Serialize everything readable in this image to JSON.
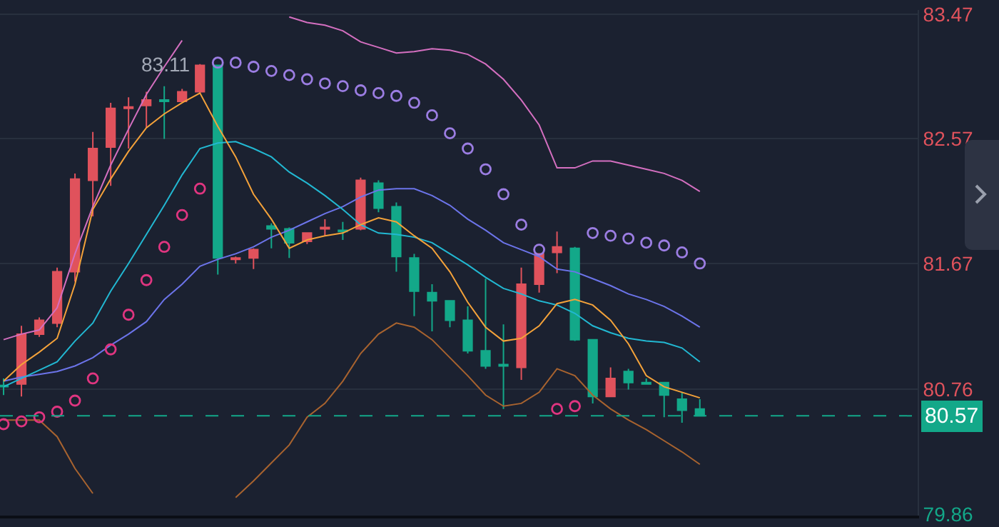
{
  "chart_data": {
    "type": "candlestick",
    "categories": [
      null,
      null,
      null,
      null,
      null,
      null,
      null,
      null,
      null,
      null,
      null,
      null,
      null,
      null,
      null,
      null,
      null,
      null,
      null,
      null,
      null,
      null,
      null,
      null,
      null,
      null,
      null,
      null,
      null,
      null,
      null,
      null,
      null,
      null,
      null,
      null,
      null,
      null,
      null,
      null
    ],
    "ylim": [
      79.85,
      83.5
    ],
    "yticks": [
      83.47,
      82.57,
      81.67,
      80.76,
      79.86
    ],
    "grid": "y",
    "tick_labels": "y",
    "series": [
      {
        "type": "line",
        "color": "#d46fc0",
        "values": [
          81.12,
          81.16,
          81.19,
          81.35,
          81.74,
          82.08,
          82.38,
          82.64,
          82.89,
          83.09,
          83.28,
          null,
          null,
          null,
          null,
          null,
          83.45,
          83.41,
          83.39,
          83.35,
          83.27,
          83.23,
          83.19,
          83.2,
          83.22,
          83.21,
          83.18,
          83.11,
          83.0,
          82.85,
          82.67,
          82.36,
          82.36,
          82.41,
          82.41,
          82.38,
          82.35,
          82.32,
          82.27,
          82.19
        ]
      },
      {
        "type": "line",
        "color": "#a8632f",
        "values": [
          80.54,
          80.54,
          80.54,
          80.42,
          80.19,
          80.01,
          null,
          null,
          null,
          null,
          null,
          null,
          null,
          79.98,
          80.1,
          80.23,
          80.36,
          80.56,
          80.66,
          80.82,
          81.02,
          81.16,
          81.24,
          81.21,
          81.12,
          80.99,
          80.86,
          80.72,
          80.64,
          80.66,
          80.74,
          80.91,
          80.86,
          80.72,
          80.62,
          80.54,
          80.47,
          80.39,
          80.31,
          80.22
        ]
      },
      {
        "type": "line",
        "color": "#6c74ea",
        "values": [
          80.82,
          80.85,
          80.87,
          80.89,
          80.93,
          80.99,
          81.08,
          81.16,
          81.25,
          81.41,
          81.52,
          81.65,
          81.7,
          81.74,
          81.79,
          81.86,
          81.91,
          81.97,
          82.03,
          82.08,
          82.15,
          82.2,
          82.21,
          82.21,
          82.16,
          82.09,
          81.99,
          81.91,
          81.82,
          81.77,
          81.72,
          81.63,
          81.61,
          81.56,
          81.51,
          81.45,
          81.41,
          81.36,
          81.29,
          81.21
        ]
      },
      {
        "type": "line",
        "color": "#22b8d2",
        "values": [
          80.78,
          80.84,
          80.9,
          80.96,
          81.11,
          81.24,
          81.47,
          81.67,
          81.88,
          82.09,
          82.31,
          82.5,
          82.54,
          82.55,
          82.5,
          82.44,
          82.33,
          82.25,
          82.16,
          82.06,
          81.95,
          81.89,
          81.88,
          81.86,
          81.82,
          81.74,
          81.66,
          81.57,
          81.49,
          81.45,
          81.4,
          81.37,
          81.31,
          81.22,
          81.17,
          81.13,
          81.11,
          81.1,
          81.06,
          80.96
        ]
      },
      {
        "type": "line",
        "color": "#f4a23a",
        "values": [
          80.82,
          80.94,
          81.03,
          81.13,
          81.52,
          82.06,
          82.28,
          82.48,
          82.65,
          82.75,
          82.83,
          82.9,
          82.66,
          82.44,
          82.17,
          81.99,
          81.78,
          81.84,
          81.87,
          81.89,
          81.95,
          82.0,
          81.97,
          81.87,
          81.78,
          81.61,
          81.39,
          81.21,
          81.11,
          81.13,
          81.22,
          81.38,
          81.41,
          81.37,
          81.26,
          81.09,
          80.86,
          80.78,
          80.74,
          80.7
        ]
      },
      {
        "type": "scatter",
        "marker": "circle",
        "color": "#e03580",
        "values": [
          80.51,
          80.53,
          80.56,
          80.6,
          80.68,
          80.84,
          81.05,
          81.3,
          81.55,
          81.79,
          82.02,
          82.21,
          null,
          null,
          null,
          null,
          null,
          null,
          null,
          null,
          null,
          null,
          null,
          null,
          null,
          null,
          null,
          null,
          null,
          null,
          null,
          80.62,
          80.64,
          null,
          null,
          null,
          null,
          null,
          null,
          null
        ]
      },
      {
        "type": "scatter",
        "marker": "circle",
        "color": "#9b7de2",
        "values": [
          null,
          null,
          null,
          null,
          null,
          null,
          null,
          null,
          null,
          null,
          null,
          null,
          83.12,
          83.12,
          83.09,
          83.06,
          83.03,
          83.0,
          82.97,
          82.95,
          82.92,
          82.9,
          82.88,
          82.83,
          82.74,
          82.61,
          82.5,
          82.35,
          82.17,
          81.95,
          81.77,
          null,
          null,
          81.89,
          81.87,
          81.85,
          81.82,
          81.8,
          81.75,
          81.67
        ]
      },
      {
        "colors": [
          "#13a889",
          "#e0525c",
          "#e0525c",
          "#e0525c",
          "#e0525c",
          "#e0525c",
          "#e0525c",
          "#e0525c",
          "#e0525c",
          "#13a889",
          "#e0525c",
          "#e0525c",
          "#13a889",
          "#e0525c",
          "#e0525c",
          "#13a889",
          "#13a889",
          "#e0525c",
          "#e0525c",
          "#13a889",
          "#e0525c",
          "#13a889",
          "#13a889",
          "#13a889",
          "#13a889",
          "#13a889",
          "#13a889",
          "#13a889",
          "#13a889",
          "#e0525c",
          "#e0525c",
          "#e0525c",
          "#13a889",
          "#13a889",
          "#e0525c",
          "#13a889",
          "#13a889",
          "#13a889",
          "#13a889",
          "#13a889"
        ],
        "ohlc": [
          [
            80.79,
            80.84,
            80.72,
            80.78
          ],
          [
            80.8,
            81.22,
            80.71,
            81.16
          ],
          [
            81.16,
            81.28,
            81.14,
            81.26
          ],
          [
            81.24,
            81.64,
            81.21,
            81.61
          ],
          [
            81.61,
            82.32,
            81.54,
            82.28
          ],
          [
            82.27,
            82.62,
            82.01,
            82.5
          ],
          [
            82.51,
            82.83,
            82.23,
            82.79
          ],
          [
            82.79,
            82.87,
            82.5,
            82.8
          ],
          [
            82.81,
            82.91,
            82.65,
            82.85
          ],
          [
            82.85,
            82.95,
            82.57,
            82.84
          ],
          [
            82.84,
            82.93,
            82.84,
            82.91
          ],
          [
            82.91,
            83.11,
            82.9,
            83.1
          ],
          [
            83.1,
            83.1,
            81.59,
            81.71
          ],
          [
            81.7,
            81.72,
            81.67,
            81.71
          ],
          [
            81.71,
            81.78,
            81.63,
            81.77
          ],
          [
            81.94,
            81.96,
            81.78,
            81.92
          ],
          [
            81.92,
            81.93,
            81.71,
            81.82
          ],
          [
            81.83,
            81.89,
            81.81,
            81.89
          ],
          [
            81.92,
            81.99,
            81.87,
            81.93
          ],
          [
            81.91,
            81.97,
            81.84,
            81.9
          ],
          [
            81.92,
            82.29,
            81.91,
            82.27
          ],
          [
            82.25,
            82.27,
            82.04,
            82.07
          ],
          [
            82.08,
            82.11,
            81.61,
            81.72
          ],
          [
            81.71,
            81.74,
            81.29,
            81.47
          ],
          [
            81.46,
            81.52,
            81.18,
            81.4
          ],
          [
            81.4,
            81.4,
            81.21,
            81.26
          ],
          [
            81.26,
            81.36,
            81.02,
            81.04
          ],
          [
            81.04,
            81.56,
            80.91,
            80.93
          ],
          [
            80.94,
            81.23,
            80.62,
            80.93
          ],
          [
            80.92,
            81.64,
            80.83,
            81.52
          ],
          [
            81.52,
            81.74,
            81.46,
            81.74
          ],
          [
            81.75,
            81.9,
            81.6,
            81.79
          ],
          [
            81.78,
            81.79,
            81.11,
            81.12
          ],
          [
            81.12,
            81.12,
            80.66,
            80.71
          ],
          [
            80.71,
            80.92,
            80.71,
            80.84
          ],
          [
            80.89,
            80.91,
            80.76,
            80.81
          ],
          [
            80.81,
            80.84,
            80.8,
            80.8
          ],
          [
            80.81,
            80.81,
            80.56,
            80.72
          ],
          [
            80.69,
            80.74,
            80.52,
            80.61
          ],
          [
            80.62,
            80.69,
            80.57,
            80.57
          ]
        ]
      }
    ],
    "ref_lines": [
      {
        "axis": "y",
        "value": 80.57,
        "label": "80.57",
        "color": "#13a889",
        "line_style": "dashed"
      }
    ],
    "annotations": [
      "83.11"
    ]
  }
}
